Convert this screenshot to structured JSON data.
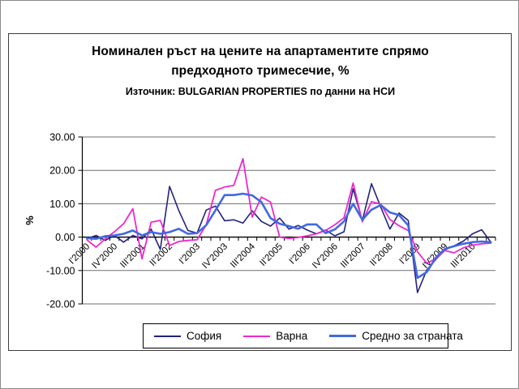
{
  "header": {
    "title_line1": "Номинален ръст на цените на апартаментите спрямо",
    "title_line2": "предходното тримесечие, %",
    "subtitle": "Източник: BULGARIAN PROPERTIES по данни на НСИ"
  },
  "chart_data": {
    "type": "line",
    "title": "Номинален ръст на цените на апартаментите спрямо предходното тримесечие, %",
    "subtitle": "Източник: BULGARIAN PROPERTIES по данни на НСИ",
    "ylabel": "%",
    "ylim": [
      -20,
      30
    ],
    "y_tick_step": 10,
    "y_tick_labels": [
      "30.00",
      "20.00",
      "10.00",
      "0.00",
      "-10.00",
      "-20.00"
    ],
    "x_tick_label_interval": 3,
    "x_tick_labels_visible": [
      "I'2000",
      "IV'2000",
      "III'2001",
      "II'2002",
      "I'2003",
      "IV'2003",
      "III'2004",
      "II'2005",
      "I'2006",
      "IV'2006",
      "III'2007",
      "II'2008",
      "I'2009",
      "IV'2009",
      "III'2010"
    ],
    "grid": true,
    "legend_position": "bottom",
    "categories": [
      "I'2000",
      "II'2000",
      "III'2000",
      "IV'2000",
      "I'2001",
      "II'2001",
      "III'2001",
      "IV'2001",
      "I'2002",
      "II'2002",
      "III'2002",
      "IV'2002",
      "I'2003",
      "II'2003",
      "III'2003",
      "IV'2003",
      "I'2004",
      "II'2004",
      "III'2004",
      "IV'2004",
      "I'2005",
      "II'2005",
      "III'2005",
      "IV'2005",
      "I'2006",
      "II'2006",
      "III'2006",
      "IV'2006",
      "I'2007",
      "II'2007",
      "III'2007",
      "IV'2007",
      "I'2008",
      "II'2008",
      "III'2008",
      "IV'2008",
      "I'2009",
      "II'2009",
      "III'2009",
      "IV'2009",
      "I'2010",
      "II'2010",
      "III'2010",
      "IV'2010",
      "I'2011"
    ],
    "series": [
      {
        "name": "София",
        "color": "#23237E",
        "width": 1.6,
        "values": [
          -0.5,
          0.5,
          -1.0,
          0.5,
          -1.5,
          0.5,
          -0.5,
          2.4,
          -3.7,
          15.2,
          8.0,
          2.0,
          1.2,
          8.1,
          9.3,
          4.9,
          5.2,
          4.2,
          7.9,
          4.7,
          3.3,
          5.7,
          2.4,
          3.5,
          2.1,
          1.0,
          2.1,
          0.4,
          1.6,
          14.5,
          4.9,
          16.0,
          9.0,
          2.4,
          7.2,
          5.0,
          -16.6,
          -9.9,
          -6.7,
          -3.8,
          -2.6,
          -1.2,
          1.0,
          2.2,
          -1.5
        ]
      },
      {
        "name": "Варна",
        "color": "#EE28CE",
        "width": 1.8,
        "values": [
          -0.8,
          -3.0,
          -0.5,
          1.6,
          4.0,
          8.5,
          -6.5,
          4.5,
          5.0,
          -2.5,
          -1.3,
          -1.0,
          -0.8,
          3.7,
          14.0,
          15.0,
          15.5,
          23.5,
          6.0,
          12.0,
          10.5,
          0.0,
          -0.4,
          -0.1,
          0.4,
          1.0,
          2.0,
          3.7,
          5.8,
          16.2,
          4.6,
          10.6,
          9.9,
          5.3,
          3.4,
          2.0,
          -4.4,
          -7.8,
          -6.5,
          -4.0,
          -4.7,
          -3.2,
          -2.4,
          -2.0,
          -1.8
        ]
      },
      {
        "name": "Средно за страната",
        "color": "#4169E1",
        "width": 2.6,
        "values": [
          -0.3,
          -0.5,
          0.3,
          0.5,
          1.0,
          2.0,
          0.5,
          1.5,
          1.0,
          1.5,
          2.5,
          1.0,
          1.2,
          3.6,
          8.0,
          12.6,
          12.6,
          13.0,
          12.5,
          10.5,
          5.7,
          4.0,
          3.3,
          2.5,
          3.8,
          3.8,
          1.2,
          2.3,
          4.7,
          10.0,
          5.2,
          8.2,
          9.6,
          7.4,
          6.6,
          3.5,
          -12.2,
          -10.5,
          -6.2,
          -3.5,
          -2.7,
          -2.0,
          -1.5,
          -1.3,
          -1.5
        ]
      }
    ]
  }
}
